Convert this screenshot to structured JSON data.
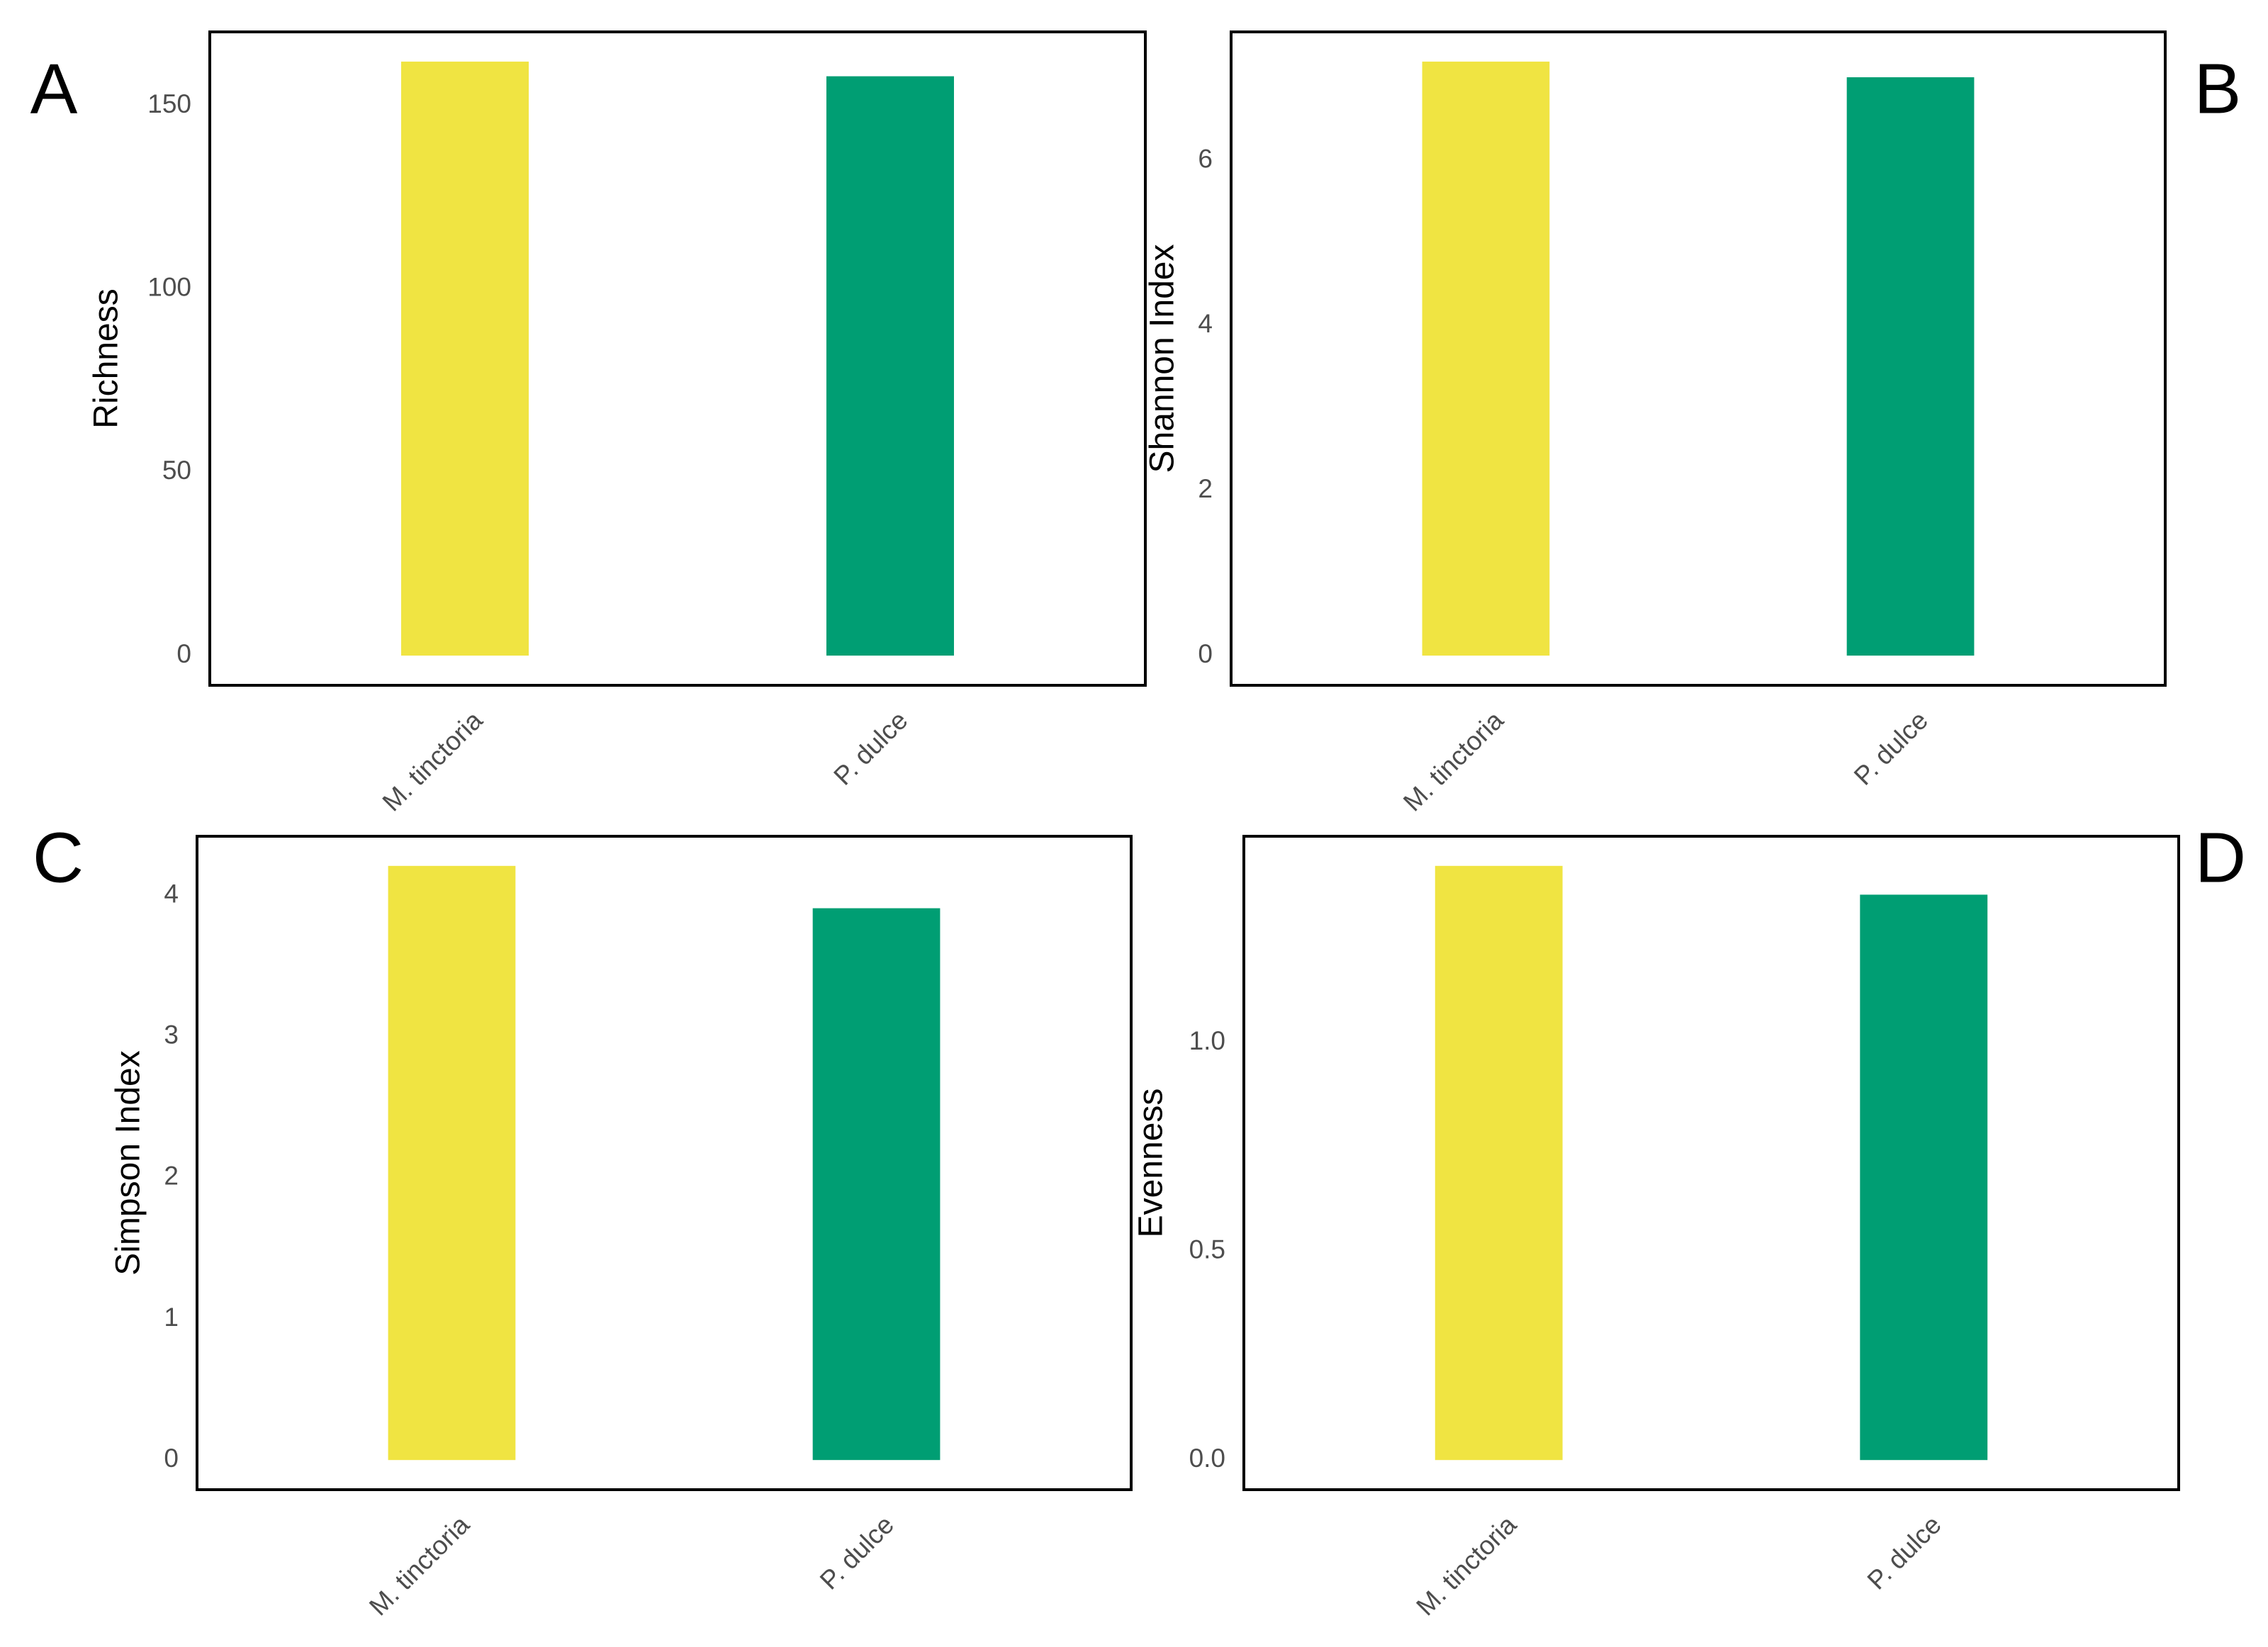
{
  "chart_data": [
    {
      "type": "bar",
      "label": "A",
      "y_label": "Richness",
      "categories": [
        "M. tinctoria",
        "P. dulce"
      ],
      "values": [
        162,
        158
      ],
      "colors": [
        "#f0e442",
        "#009e73"
      ],
      "ylim": [
        -8.1,
        170.1
      ],
      "yticks": [
        0,
        50,
        100,
        150
      ]
    },
    {
      "type": "bar",
      "label": "B",
      "y_label": "Shannon Index",
      "categories": [
        "M. tinctoria",
        "P. dulce"
      ],
      "values": [
        7.2,
        7.01
      ],
      "colors": [
        "#f0e442",
        "#009e73"
      ],
      "ylim": [
        -0.36,
        7.56
      ],
      "yticks": [
        0,
        2,
        4,
        6
      ]
    },
    {
      "type": "bar",
      "label": "C",
      "y_label": "Simpson Index",
      "categories": [
        "M. tinctoria",
        "P. dulce"
      ],
      "values": [
        4.21,
        3.91
      ],
      "colors": [
        "#f0e442",
        "#009e73"
      ],
      "ylim": [
        -0.21,
        4.42
      ],
      "yticks": [
        0,
        1,
        2,
        3,
        4
      ]
    },
    {
      "type": "bar",
      "label": "D",
      "y_label": "Evenness",
      "categories": [
        "M. tinctoria",
        "P. dulce"
      ],
      "values": [
        1.424,
        1.355
      ],
      "colors": [
        "#f0e442",
        "#009e73"
      ],
      "ylim": [
        -0.071,
        1.495
      ],
      "yticks": [
        {
          "value": 0,
          "label": "0.0"
        },
        0.5,
        {
          "value": 1,
          "label": "1.0"
        }
      ]
    }
  ]
}
